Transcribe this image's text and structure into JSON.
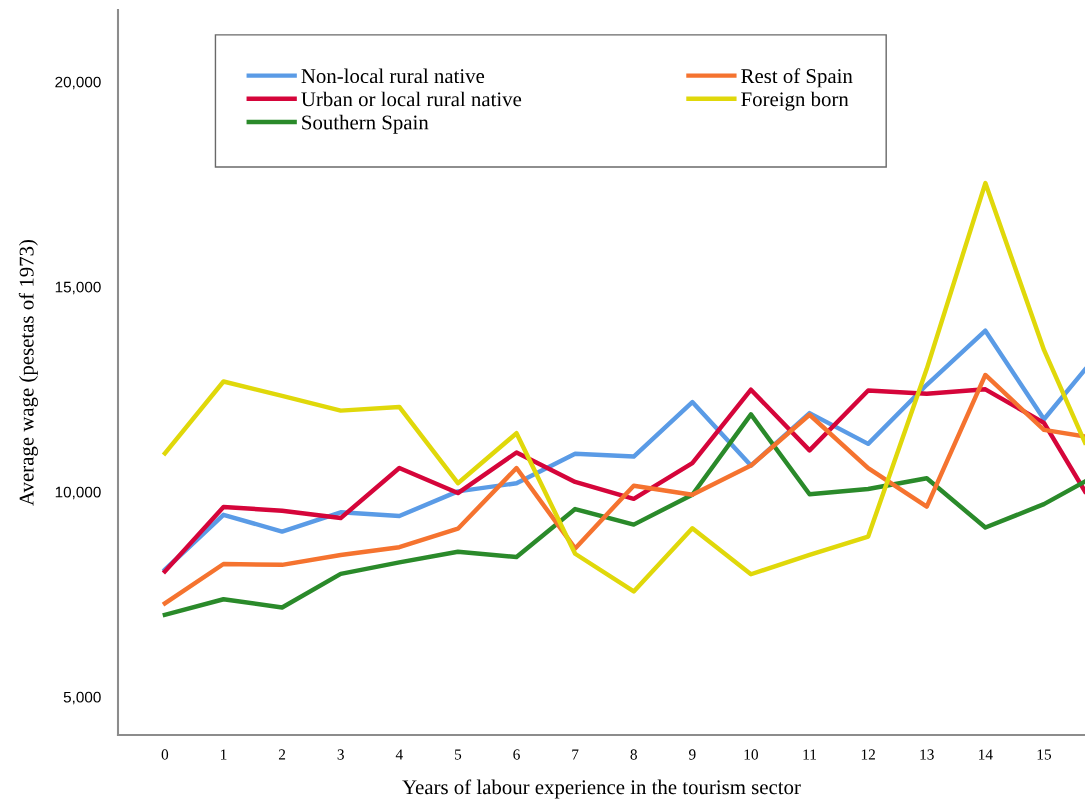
{
  "chart_data": {
    "type": "line",
    "xlabel": "Years of labour experience in the tourism sector",
    "ylabel": "Average wage (pesetas of 1973)",
    "x": [
      0,
      1,
      2,
      3,
      4,
      5,
      6,
      7,
      8,
      9,
      10,
      11,
      12,
      13,
      14,
      15,
      15.7
    ],
    "xlim": [
      -0.8,
      15.7
    ],
    "xticks": [
      0,
      1,
      2,
      3,
      4,
      5,
      6,
      7,
      8,
      9,
      10,
      11,
      12,
      13,
      14,
      15
    ],
    "ylim": [
      4070,
      21750
    ],
    "yticks": [
      {
        "value": 5000,
        "label": "5,000"
      },
      {
        "value": 10000,
        "label": "10,000"
      },
      {
        "value": 15000,
        "label": "15,000"
      },
      {
        "value": 20000,
        "label": "20,000"
      }
    ],
    "grid": false,
    "legend": "top left",
    "marker": "none",
    "line_style": "solid",
    "series": [
      {
        "name": "Non-local rural native",
        "color": "#5a9be6",
        "values": [
          8100,
          9440,
          9030,
          9500,
          9410,
          10010,
          10210,
          10930,
          10860,
          12190,
          10640,
          11920,
          11170,
          12610,
          13930,
          11770,
          12980
        ]
      },
      {
        "name": "Urban or local rural native",
        "color": "#d5053a",
        "values": [
          8060,
          9630,
          9540,
          9360,
          10580,
          9970,
          10960,
          10240,
          9830,
          10700,
          12490,
          11010,
          12470,
          12390,
          12500,
          11680,
          10010
        ]
      },
      {
        "name": "Southern Spain",
        "color": "#2a8a2a",
        "values": [
          7000,
          7380,
          7180,
          8000,
          8280,
          8540,
          8410,
          9580,
          9200,
          9930,
          11890,
          9940,
          10070,
          10330,
          9130,
          9700,
          10250
        ]
      },
      {
        "name": "Rest of Spain",
        "color": "#f5732f",
        "values": [
          7280,
          8240,
          8220,
          8460,
          8650,
          9100,
          10580,
          8620,
          10150,
          9930,
          10640,
          11880,
          10580,
          9640,
          12850,
          11510,
          11350
        ]
      },
      {
        "name": "Foreign born",
        "color": "#e0d80a",
        "values": [
          10940,
          12690,
          12340,
          11980,
          12070,
          10210,
          11430,
          8490,
          7570,
          9110,
          7990,
          8460,
          8910,
          13000,
          17530,
          13460,
          11200
        ]
      }
    ]
  }
}
